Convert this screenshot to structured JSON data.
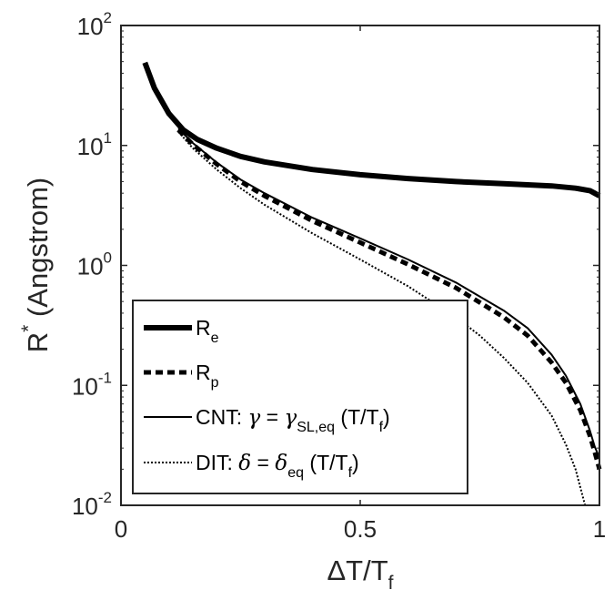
{
  "chart_data": {
    "type": "line",
    "title": "",
    "xlabel": {
      "main": "ΔT/T",
      "sub": "f"
    },
    "ylabel": {
      "main": "R",
      "sup": "*",
      "rest": " (Angstrom)"
    },
    "xlim": [
      0,
      1
    ],
    "ylim": [
      0.01,
      100
    ],
    "yscale": "log",
    "grid": false,
    "legend_position": "bottom-left",
    "x_ticks": [
      {
        "value": 0,
        "label": "0"
      },
      {
        "value": 0.5,
        "label": "0.5"
      },
      {
        "value": 1,
        "label": "1"
      }
    ],
    "y_ticks": [
      {
        "value": 0.01,
        "base": "10",
        "exp": "-2"
      },
      {
        "value": 0.1,
        "base": "10",
        "exp": "-1"
      },
      {
        "value": 1,
        "base": "10",
        "exp": "0"
      },
      {
        "value": 10,
        "base": "10",
        "exp": "1"
      },
      {
        "value": 100,
        "base": "10",
        "exp": "2"
      }
    ],
    "series": [
      {
        "name": "R_e",
        "style": "thick-solid",
        "legend": {
          "main": "R",
          "sub": "e"
        },
        "x": [
          0.05,
          0.07,
          0.1,
          0.13,
          0.16,
          0.2,
          0.25,
          0.3,
          0.4,
          0.5,
          0.6,
          0.7,
          0.8,
          0.9,
          0.95,
          0.98,
          0.99,
          1.0
        ],
        "y": [
          49,
          30,
          18.5,
          13.5,
          11.2,
          9.5,
          8.1,
          7.3,
          6.3,
          5.7,
          5.3,
          5.0,
          4.8,
          4.6,
          4.4,
          4.2,
          4.0,
          3.8
        ]
      },
      {
        "name": "R_p",
        "style": "thick-dashed",
        "legend": {
          "main": "R",
          "sub": "p"
        },
        "x": [
          0.12,
          0.15,
          0.2,
          0.25,
          0.3,
          0.4,
          0.5,
          0.6,
          0.7,
          0.8,
          0.85,
          0.9,
          0.93,
          0.96,
          0.98,
          0.99,
          1.0
        ],
        "y": [
          13.5,
          10.2,
          7.0,
          5.0,
          3.8,
          2.35,
          1.55,
          1.02,
          0.65,
          0.37,
          0.26,
          0.155,
          0.105,
          0.062,
          0.038,
          0.028,
          0.02
        ]
      },
      {
        "name": "CNT",
        "style": "thin-solid",
        "legend": {
          "pre": "CNT: ",
          "lhs": "γ",
          "eq": " = ",
          "rhs": "γ",
          "rhs_sub": "SL,eq",
          "post": " (T/T",
          "post_sub": "f",
          "close": ")"
        },
        "x": [
          0.12,
          0.15,
          0.2,
          0.25,
          0.3,
          0.4,
          0.5,
          0.6,
          0.7,
          0.8,
          0.85,
          0.9,
          0.93,
          0.96,
          0.98,
          0.99,
          1.0
        ],
        "y": [
          13.8,
          10.5,
          7.2,
          5.2,
          4.0,
          2.5,
          1.68,
          1.12,
          0.72,
          0.42,
          0.3,
          0.18,
          0.12,
          0.07,
          0.042,
          0.031,
          0.025
        ]
      },
      {
        "name": "DIT",
        "style": "thin-dotted",
        "legend": {
          "pre": "DIT: ",
          "lhs": "δ",
          "eq": " = ",
          "rhs": "δ",
          "rhs_sub": "eq",
          "post": " (T/T",
          "post_sub": "f",
          "close": ")"
        },
        "x": [
          0.12,
          0.15,
          0.2,
          0.25,
          0.3,
          0.4,
          0.5,
          0.6,
          0.7,
          0.75,
          0.8,
          0.85,
          0.9,
          0.93,
          0.95,
          0.97
        ],
        "y": [
          13.0,
          9.5,
          6.3,
          4.4,
          3.2,
          1.85,
          1.12,
          0.67,
          0.37,
          0.26,
          0.17,
          0.105,
          0.056,
          0.032,
          0.02,
          0.01
        ]
      }
    ]
  }
}
